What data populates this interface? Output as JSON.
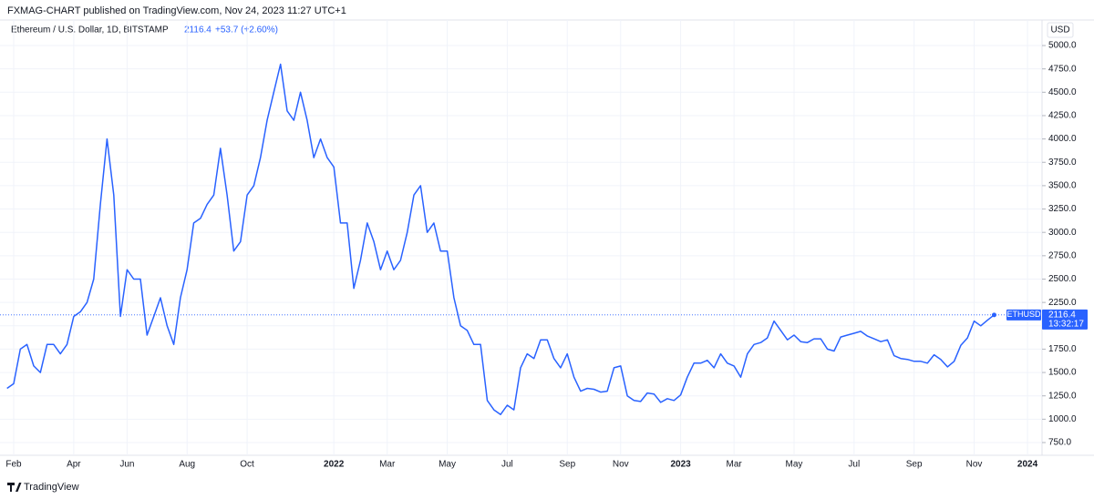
{
  "header": "FXMAG-CHART published on TradingView.com, Nov 24, 2023 11:27 UTC+1",
  "footer": "TradingView",
  "chart_data": {
    "type": "line",
    "title": "Ethereum / U.S. Dollar, 1D, BITSTAMP",
    "last_value": 2116.4,
    "change": "+53.7 (+2.60%)",
    "symbol": "ETHUSD",
    "countdown": "13:32:17",
    "currency": "USD",
    "grid": true,
    "ylim": [
      600,
      5200
    ],
    "yticks": [
      {
        "value": 750,
        "label": "750.0"
      },
      {
        "value": 1000,
        "label": "1000.0"
      },
      {
        "value": 1250,
        "label": "1250.0"
      },
      {
        "value": 1500,
        "label": "1500.0"
      },
      {
        "value": 1750,
        "label": "1750.0"
      },
      {
        "value": 2000,
        "label": "2000.0"
      },
      {
        "value": 2250,
        "label": "2250.0"
      },
      {
        "value": 2500,
        "label": "2500.0"
      },
      {
        "value": 2750,
        "label": "2750.0"
      },
      {
        "value": 3000,
        "label": "3000.0"
      },
      {
        "value": 3250,
        "label": "3250.0"
      },
      {
        "value": 3500,
        "label": "3500.0"
      },
      {
        "value": 3750,
        "label": "3750.0"
      },
      {
        "value": 4000,
        "label": "4000.0"
      },
      {
        "value": 4250,
        "label": "4250.0"
      },
      {
        "value": 4500,
        "label": "4500.0"
      },
      {
        "value": 4750,
        "label": "4750.0"
      },
      {
        "value": 5000,
        "label": "5000.0"
      }
    ],
    "categories": [
      null,
      "Feb",
      null,
      null,
      null,
      null,
      null,
      null,
      null,
      null,
      "Apr",
      null,
      null,
      null,
      null,
      null,
      null,
      null,
      "Jun",
      null,
      null,
      null,
      null,
      null,
      null,
      null,
      null,
      "Aug",
      null,
      null,
      null,
      null,
      null,
      null,
      null,
      null,
      "Oct",
      null,
      null,
      null,
      null,
      null,
      null,
      null,
      null,
      null,
      null,
      null,
      null,
      "2022",
      null,
      null,
      null,
      null,
      null,
      null,
      null,
      "Mar",
      null,
      null,
      null,
      null,
      null,
      null,
      null,
      null,
      "May",
      null,
      null,
      null,
      null,
      null,
      null,
      null,
      null,
      "Jul",
      null,
      null,
      null,
      null,
      null,
      null,
      null,
      null,
      "Sep",
      null,
      null,
      null,
      null,
      null,
      null,
      null,
      "Nov",
      null,
      null,
      null,
      null,
      null,
      null,
      null,
      null,
      "2023",
      null,
      null,
      null,
      null,
      null,
      null,
      null,
      "Mar",
      null,
      null,
      null,
      null,
      null,
      null,
      null,
      null,
      "May",
      null,
      null,
      null,
      null,
      null,
      null,
      null,
      null,
      "Jul",
      null,
      null,
      null,
      null,
      null,
      null,
      null,
      null,
      "Sep",
      null,
      null,
      null,
      null,
      null,
      null,
      null,
      null,
      "Nov",
      null,
      null,
      null,
      null,
      null,
      null,
      null,
      "2024"
    ],
    "series": [
      {
        "name": "ETHUSD",
        "color": "#2962ff",
        "values": [
          1330,
          1380,
          1750,
          1800,
          1570,
          1500,
          1800,
          1800,
          1700,
          1800,
          2100,
          2150,
          2250,
          2500,
          3300,
          4000,
          3400,
          2100,
          2600,
          2500,
          2500,
          1900,
          2100,
          2300,
          2000,
          1800,
          2300,
          2600,
          3100,
          3150,
          3300,
          3400,
          3900,
          3400,
          2800,
          2900,
          3400,
          3500,
          3800,
          4200,
          4500,
          4800,
          4300,
          4200,
          4500,
          4200,
          3800,
          4000,
          3800,
          3700,
          3100,
          3100,
          2400,
          2700,
          3100,
          2900,
          2600,
          2800,
          2600,
          2700,
          3000,
          3400,
          3500,
          3000,
          3100,
          2800,
          2800,
          2300,
          2000,
          1950,
          1800,
          1800,
          1200,
          1100,
          1050,
          1150,
          1100,
          1550,
          1700,
          1650,
          1850,
          1850,
          1650,
          1550,
          1700,
          1450,
          1300,
          1330,
          1320,
          1290,
          1300,
          1550,
          1570,
          1250,
          1200,
          1190,
          1280,
          1270,
          1180,
          1220,
          1200,
          1260,
          1450,
          1600,
          1600,
          1630,
          1550,
          1700,
          1600,
          1570,
          1450,
          1700,
          1800,
          1820,
          1870,
          2050,
          1950,
          1850,
          1900,
          1830,
          1820,
          1860,
          1860,
          1750,
          1730,
          1880,
          1900,
          1920,
          1940,
          1890,
          1860,
          1830,
          1850,
          1680,
          1650,
          1640,
          1620,
          1620,
          1600,
          1690,
          1640,
          1560,
          1620,
          1790,
          1870,
          2050,
          2000,
          2060,
          2116.4,
          null,
          null,
          null,
          null,
          null
        ]
      }
    ]
  }
}
